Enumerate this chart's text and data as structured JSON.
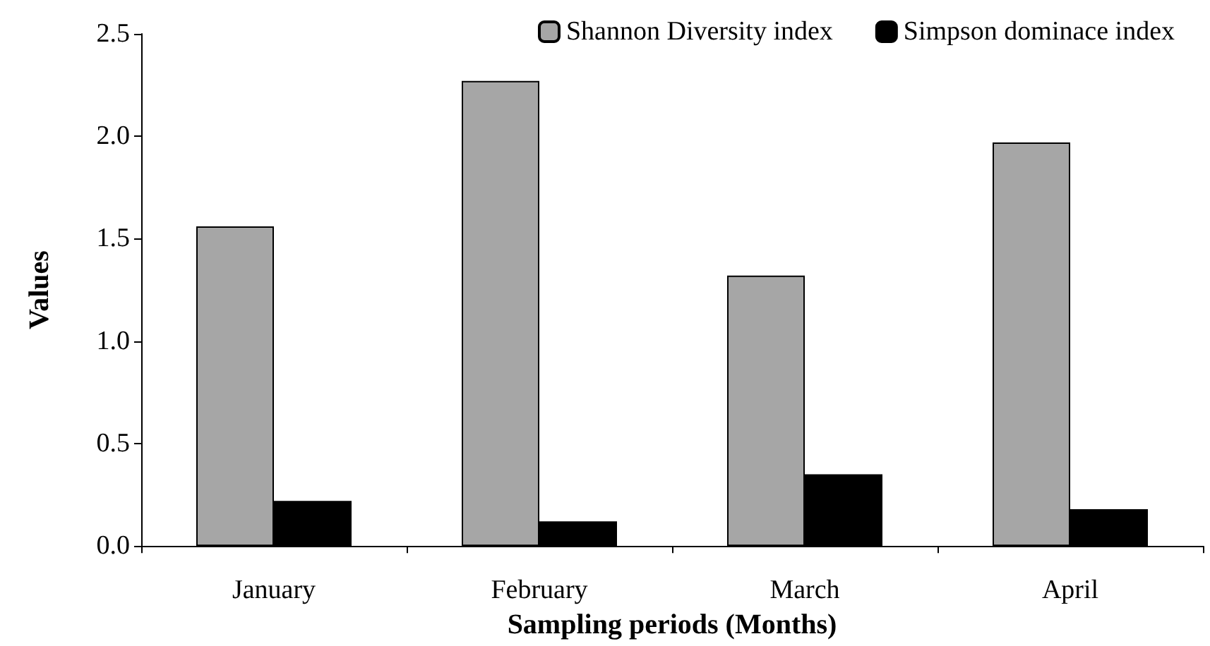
{
  "chart_data": {
    "type": "bar",
    "xlabel": "Sampling periods (Months)",
    "ylabel": "Values",
    "categories": [
      "January",
      "February",
      "March",
      "April"
    ],
    "series": [
      {
        "name": "Shannon Diversity index",
        "color": "#a6a6a6",
        "values": [
          1.56,
          2.27,
          1.32,
          1.97
        ]
      },
      {
        "name": "Simpson dominace index",
        "color": "#000000",
        "values": [
          0.22,
          0.12,
          0.35,
          0.18
        ]
      }
    ],
    "ylim": [
      0,
      2.5
    ],
    "yticks": [
      {
        "value": 0,
        "label": "0.0"
      },
      {
        "value": 0.5,
        "label": "0.5"
      },
      {
        "value": 1,
        "label": "1.0"
      },
      {
        "value": 1.5,
        "label": "1.5"
      },
      {
        "value": 2,
        "label": "2.0"
      },
      {
        "value": 2.5,
        "label": "2.5"
      }
    ],
    "grid": false,
    "legend": "top right"
  }
}
